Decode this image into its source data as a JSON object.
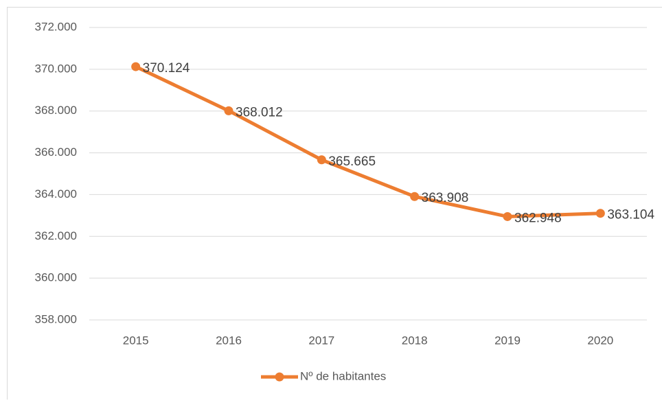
{
  "chart_data": {
    "type": "line",
    "categories": [
      "2015",
      "2016",
      "2017",
      "2018",
      "2019",
      "2020"
    ],
    "series": [
      {
        "name": "Nº de habitantes",
        "color": "#ed7d31",
        "values": [
          370124,
          368012,
          365665,
          363908,
          362948,
          363104
        ],
        "value_labels": [
          "370.124",
          "368.012",
          "365.665",
          "363.908",
          "362.948",
          "363.104"
        ]
      }
    ],
    "ylim": [
      358000,
      372000
    ],
    "yticks": [
      {
        "value": 358000,
        "label": "358.000"
      },
      {
        "value": 360000,
        "label": "360.000"
      },
      {
        "value": 362000,
        "label": "362.000"
      },
      {
        "value": 364000,
        "label": "364.000"
      },
      {
        "value": 366000,
        "label": "366.000"
      },
      {
        "value": 368000,
        "label": "368.000"
      },
      {
        "value": 370000,
        "label": "370.000"
      },
      {
        "value": 372000,
        "label": "372.000"
      }
    ],
    "grid": true,
    "legend": "bottom"
  }
}
